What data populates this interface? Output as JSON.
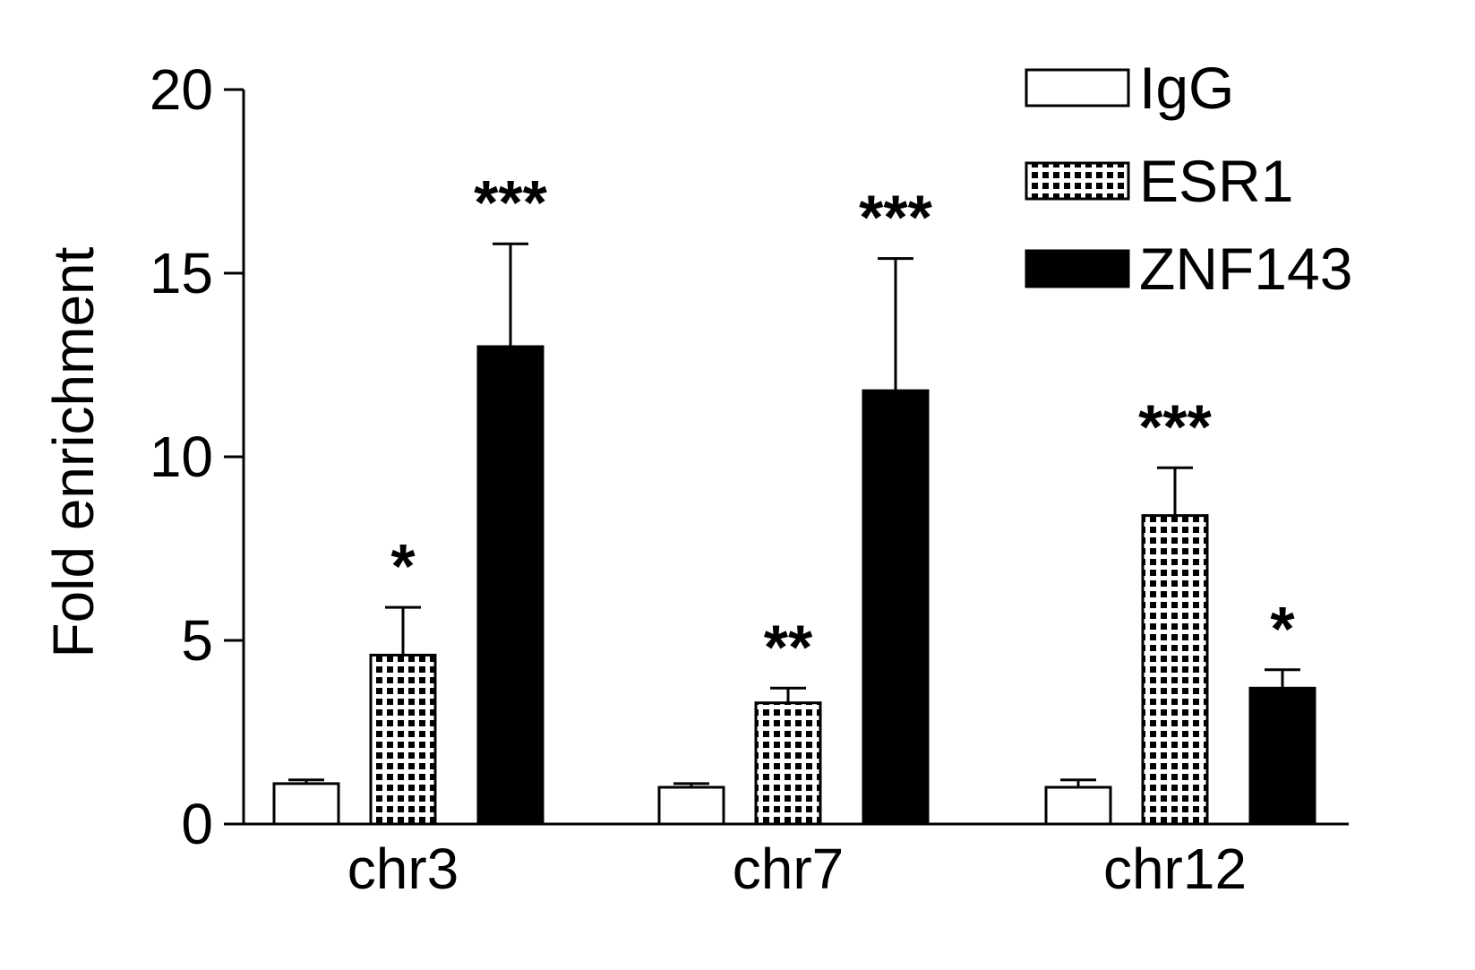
{
  "chart_data": {
    "type": "bar",
    "title": "",
    "xlabel": "",
    "ylabel": "Fold enrichment",
    "ylim": [
      0,
      20
    ],
    "yticks": [
      "0",
      "5",
      "10",
      "15",
      "20"
    ],
    "ytick_values": [
      0,
      5,
      10,
      15,
      20
    ],
    "categories": [
      "chr3",
      "chr7",
      "chr12"
    ],
    "legend_position": "top-right",
    "grid": false,
    "series": [
      {
        "name": "IgG",
        "style": "open",
        "fill": "#ffffff",
        "values": [
          1.1,
          1.0,
          1.0
        ],
        "errors": [
          0.1,
          0.1,
          0.2
        ],
        "significance": [
          "",
          "",
          ""
        ]
      },
      {
        "name": "ESR1",
        "style": "dotted",
        "fill": "#000000",
        "values": [
          4.6,
          3.3,
          8.4
        ],
        "errors": [
          1.3,
          0.4,
          1.3
        ],
        "significance": [
          "*",
          "**",
          "***"
        ]
      },
      {
        "name": "ZNF143",
        "style": "solid",
        "fill": "#000000",
        "values": [
          13.0,
          11.8,
          3.7
        ],
        "errors": [
          2.8,
          3.6,
          0.5
        ],
        "significance": [
          "***",
          "***",
          "*"
        ]
      }
    ]
  }
}
